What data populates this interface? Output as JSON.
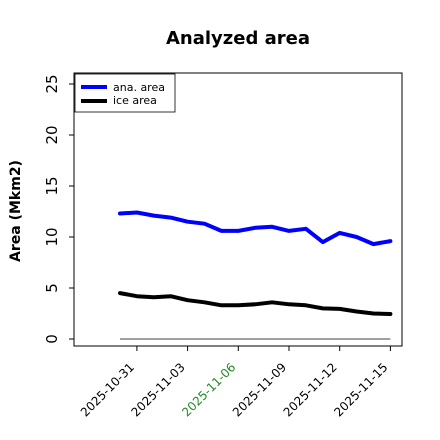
{
  "chart_data": {
    "type": "line",
    "title": "Analyzed area",
    "xlabel": "",
    "ylabel": "Area (Mkm2)",
    "x": [
      "2025-10-30",
      "2025-10-31",
      "2025-11-01",
      "2025-11-02",
      "2025-11-03",
      "2025-11-04",
      "2025-11-05",
      "2025-11-06",
      "2025-11-07",
      "2025-11-08",
      "2025-11-09",
      "2025-11-10",
      "2025-11-11",
      "2025-11-12",
      "2025-11-13",
      "2025-11-14",
      "2025-11-15"
    ],
    "xticks": [
      "2025-10-31",
      "2025-11-03",
      "2025-11-06",
      "2025-11-09",
      "2025-11-12",
      "2025-11-15"
    ],
    "xtick_colors": [
      "#000000",
      "#000000",
      "#228b22",
      "#000000",
      "#000000",
      "#000000"
    ],
    "ylim": [
      -0.8,
      26
    ],
    "yticks": [
      0,
      5,
      10,
      15,
      20,
      25
    ],
    "grid": false,
    "legend_position": "top-left",
    "series": [
      {
        "name": "ana. area",
        "color": "#0000ff",
        "values": [
          12.3,
          12.4,
          12.1,
          11.9,
          11.5,
          11.3,
          10.6,
          10.6,
          10.9,
          11.0,
          10.6,
          10.8,
          9.5,
          10.4,
          10.0,
          9.3,
          9.6
        ]
      },
      {
        "name": "ice area",
        "color": "#000000",
        "values": [
          4.5,
          4.2,
          4.1,
          4.2,
          3.8,
          3.6,
          3.3,
          3.3,
          3.4,
          3.6,
          3.4,
          3.3,
          3.0,
          2.95,
          2.7,
          2.5,
          2.45
        ]
      }
    ],
    "baseline": {
      "value": 0,
      "color": "#808080"
    }
  }
}
